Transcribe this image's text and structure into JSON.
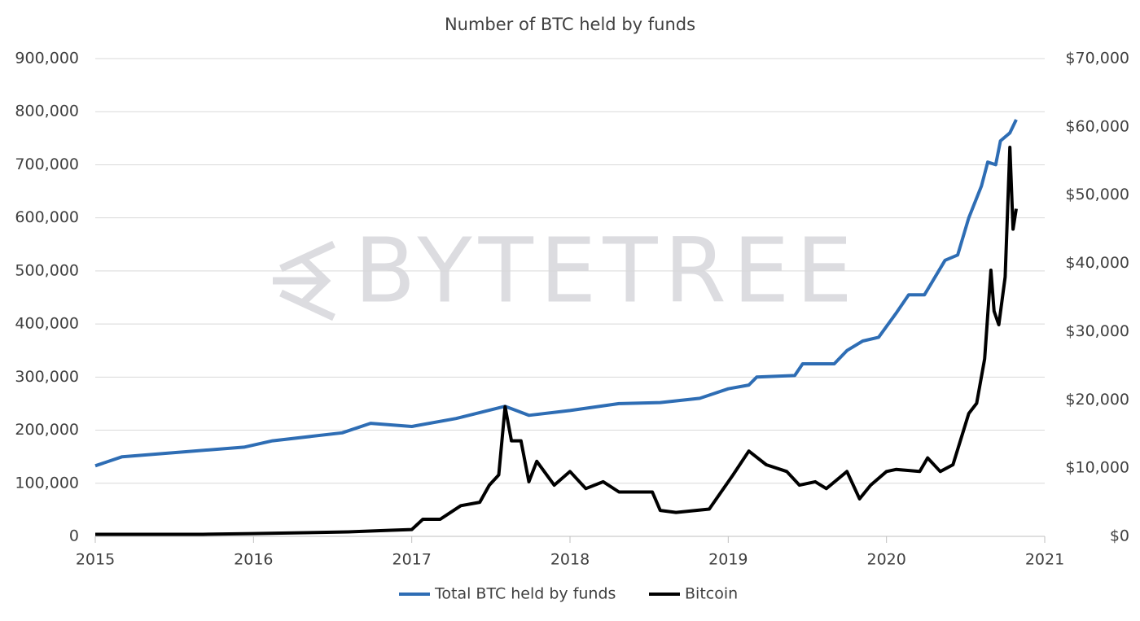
{
  "chart_data": {
    "type": "line",
    "title": "Number of BTC held by funds",
    "watermark": "BYTETREE",
    "xlim": [
      2015,
      2021
    ],
    "xticks": [
      2015,
      2016,
      2017,
      2018,
      2019,
      2020,
      2021
    ],
    "ylim": [
      0,
      900000
    ],
    "yticks": [
      0,
      {
        "value": 100000,
        "label": "100,000"
      },
      {
        "value": 200000,
        "label": "200,000"
      },
      {
        "value": 300000,
        "label": "300,000"
      },
      {
        "value": 400000,
        "label": "400,000"
      },
      {
        "value": 500000,
        "label": "500,000"
      },
      {
        "value": 600000,
        "label": "600,000"
      },
      {
        "value": 700000,
        "label": "700,000"
      },
      {
        "value": 800000,
        "label": "800,000"
      },
      {
        "value": 900000,
        "label": "900,000"
      }
    ],
    "y2lim": [
      0,
      70000
    ],
    "y2ticks": [
      {
        "value": 0,
        "label": "$0"
      },
      {
        "value": 10000,
        "label": "$10,000"
      },
      {
        "value": 20000,
        "label": "$20,000"
      },
      {
        "value": 30000,
        "label": "$30,000"
      },
      {
        "value": 40000,
        "label": "$40,000"
      },
      {
        "value": 50000,
        "label": "$50,000"
      },
      {
        "value": 60000,
        "label": "$60,000"
      },
      {
        "value": 70000,
        "label": "$70,000"
      }
    ],
    "grid": true,
    "legend": "bottom",
    "series": [
      {
        "name": "Total BTC held by funds",
        "color": "#2e6db4",
        "x": [
          2015.0,
          2015.17,
          2015.94,
          2016.12,
          2016.56,
          2016.74,
          2017.0,
          2017.28,
          2017.59,
          2017.74,
          2018.0,
          2018.31,
          2018.57,
          2018.82,
          2019.0,
          2019.13,
          2019.18,
          2019.42,
          2019.47,
          2019.67,
          2019.75,
          2019.85,
          2019.95,
          2020.06,
          2020.14,
          2020.24,
          2020.37,
          2020.45,
          2020.52,
          2020.6,
          2020.64,
          2020.69,
          2020.72,
          2020.78,
          2020.82
        ],
        "values": [
          133000,
          150000,
          168000,
          180000,
          195000,
          213000,
          207000,
          222000,
          245000,
          228000,
          237000,
          250000,
          252000,
          260000,
          278000,
          285000,
          300000,
          303000,
          325000,
          325000,
          350000,
          368000,
          375000,
          420000,
          455000,
          455000,
          520000,
          530000,
          600000,
          660000,
          705000,
          700000,
          745000,
          760000,
          785000
        ]
      },
      {
        "name": "Bitcoin",
        "color": "#000000",
        "axis": "y2",
        "x": [
          2015.0,
          2015.68,
          2015.99,
          2016.6,
          2016.87,
          2017.0,
          2017.07,
          2017.18,
          2017.31,
          2017.43,
          2017.49,
          2017.55,
          2017.59,
          2017.63,
          2017.69,
          2017.74,
          2017.79,
          2017.9,
          2018.0,
          2018.1,
          2018.21,
          2018.31,
          2018.52,
          2018.57,
          2018.67,
          2018.88,
          2019.03,
          2019.13,
          2019.24,
          2019.37,
          2019.45,
          2019.55,
          2019.62,
          2019.75,
          2019.83,
          2019.9,
          2020.0,
          2020.06,
          2020.21,
          2020.26,
          2020.34,
          2020.42,
          2020.52,
          2020.57,
          2020.62,
          2020.66,
          2020.68,
          2020.71,
          2020.75,
          2020.78,
          2020.8,
          2020.82
        ],
        "values": [
          300,
          300,
          400,
          650,
          900,
          1000,
          2500,
          2500,
          4500,
          5000,
          7500,
          9000,
          19000,
          14000,
          14000,
          8000,
          11000,
          7500,
          9500,
          7000,
          8000,
          6500,
          6500,
          3800,
          3500,
          4000,
          9000,
          12500,
          10500,
          9500,
          7500,
          8000,
          7000,
          9500,
          5500,
          7500,
          9500,
          9800,
          9500,
          11500,
          9500,
          10500,
          18000,
          19500,
          26000,
          39000,
          33000,
          31000,
          38000,
          57000,
          45000,
          48000
        ]
      }
    ]
  }
}
